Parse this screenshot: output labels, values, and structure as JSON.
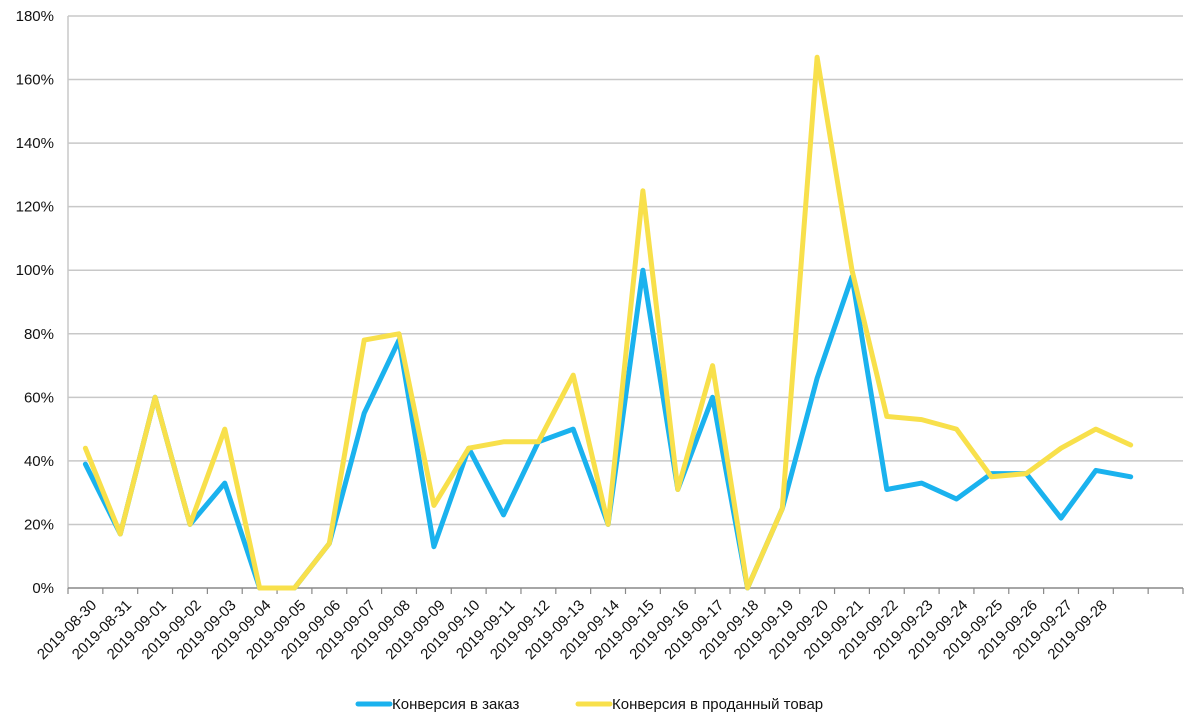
{
  "chart_data": {
    "type": "line",
    "categories": [
      "2019-08-30",
      "2019-08-31",
      "2019-09-01",
      "2019-09-02",
      "2019-09-03",
      "2019-09-04",
      "2019-09-05",
      "2019-09-06",
      "2019-09-07",
      "2019-09-08",
      "2019-09-09",
      "2019-09-10",
      "2019-09-11",
      "2019-09-12",
      "2019-09-13",
      "2019-09-14",
      "2019-09-15",
      "2019-09-16",
      "2019-09-17",
      "2019-09-18",
      "2019-09-19",
      "2019-09-20",
      "2019-09-21",
      "2019-09-22",
      "2019-09-23",
      "2019-09-24",
      "2019-09-25",
      "2019-09-26",
      "2019-09-27",
      "2019-09-28",
      ""
    ],
    "y_ticks": [
      "0%",
      "20%",
      "40%",
      "60%",
      "80%",
      "100%",
      "120%",
      "140%",
      "160%",
      "180%"
    ],
    "ylim": [
      0,
      180
    ],
    "grid": true,
    "legend_position": "bottom",
    "series": [
      {
        "name": "Конверсия в заказ",
        "color": "#1AB2EE",
        "values": [
          39,
          17,
          60,
          20,
          33,
          0,
          0,
          14,
          55,
          78,
          13,
          44,
          23,
          46,
          50,
          20,
          100,
          31,
          60,
          0,
          25,
          66,
          98,
          31,
          33,
          28,
          36,
          36,
          22,
          37,
          35
        ]
      },
      {
        "name": "Конверсия в проданный товар",
        "color": "#F8E04B",
        "values": [
          44,
          17,
          60,
          20,
          50,
          0,
          0,
          14,
          78,
          80,
          26,
          44,
          46,
          46,
          67,
          20,
          125,
          31,
          70,
          0,
          25,
          167,
          100,
          54,
          53,
          50,
          35,
          36,
          44,
          50,
          45
        ]
      }
    ]
  }
}
